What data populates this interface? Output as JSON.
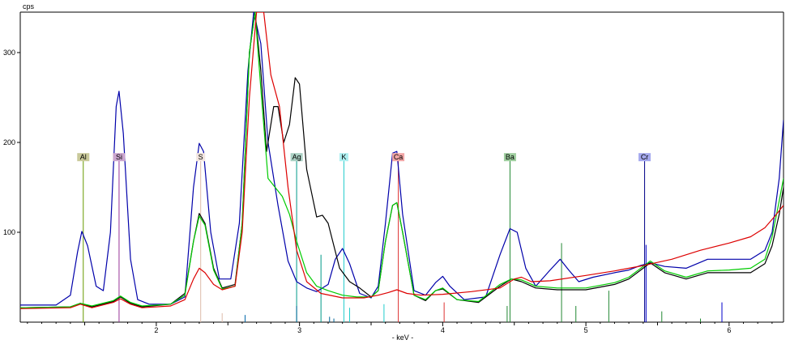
{
  "chart_data": {
    "type": "line",
    "ylabel": "cps",
    "xlabel": "- keV -",
    "xlim": [
      1.05,
      6.38
    ],
    "ylim": [
      0,
      345
    ],
    "x_ticks": [
      2,
      3,
      4,
      5,
      6
    ],
    "y_ticks": [
      100,
      200,
      300
    ],
    "x_tick_labels": [
      "2",
      "3",
      "4",
      "5",
      "6"
    ],
    "y_tick_labels": [
      "100",
      "200",
      "300"
    ],
    "series": [
      {
        "color": "#0000aa",
        "points": [
          [
            1.05,
            19
          ],
          [
            1.3,
            19
          ],
          [
            1.4,
            30
          ],
          [
            1.45,
            78
          ],
          [
            1.48,
            101
          ],
          [
            1.52,
            85
          ],
          [
            1.58,
            40
          ],
          [
            1.63,
            35
          ],
          [
            1.68,
            100
          ],
          [
            1.72,
            240
          ],
          [
            1.74,
            257
          ],
          [
            1.77,
            210
          ],
          [
            1.82,
            70
          ],
          [
            1.87,
            25
          ],
          [
            1.95,
            20
          ],
          [
            2.1,
            20
          ],
          [
            2.2,
            28
          ],
          [
            2.26,
            150
          ],
          [
            2.3,
            199
          ],
          [
            2.33,
            190
          ],
          [
            2.38,
            100
          ],
          [
            2.44,
            48
          ],
          [
            2.52,
            48
          ],
          [
            2.58,
            110
          ],
          [
            2.64,
            280
          ],
          [
            2.68,
            345
          ],
          [
            2.73,
            310
          ],
          [
            2.78,
            200
          ],
          [
            2.85,
            130
          ],
          [
            2.92,
            68
          ],
          [
            2.98,
            45
          ],
          [
            3.05,
            38
          ],
          [
            3.12,
            34
          ],
          [
            3.2,
            42
          ],
          [
            3.25,
            70
          ],
          [
            3.3,
            82
          ],
          [
            3.35,
            65
          ],
          [
            3.42,
            32
          ],
          [
            3.5,
            27
          ],
          [
            3.55,
            40
          ],
          [
            3.6,
            110
          ],
          [
            3.65,
            188
          ],
          [
            3.68,
            190
          ],
          [
            3.72,
            120
          ],
          [
            3.8,
            35
          ],
          [
            3.88,
            30
          ],
          [
            3.95,
            44
          ],
          [
            4.0,
            51
          ],
          [
            4.05,
            40
          ],
          [
            4.15,
            25
          ],
          [
            4.3,
            28
          ],
          [
            4.4,
            75
          ],
          [
            4.47,
            104
          ],
          [
            4.52,
            100
          ],
          [
            4.58,
            60
          ],
          [
            4.65,
            40
          ],
          [
            4.75,
            58
          ],
          [
            4.82,
            70
          ],
          [
            4.88,
            58
          ],
          [
            4.95,
            45
          ],
          [
            5.05,
            50
          ],
          [
            5.2,
            55
          ],
          [
            5.3,
            58
          ],
          [
            5.38,
            63
          ],
          [
            5.45,
            66
          ],
          [
            5.55,
            62
          ],
          [
            5.7,
            60
          ],
          [
            5.85,
            70
          ],
          [
            6.0,
            70
          ],
          [
            6.15,
            70
          ],
          [
            6.25,
            80
          ],
          [
            6.3,
            100
          ],
          [
            6.35,
            160
          ],
          [
            6.38,
            225
          ]
        ]
      },
      {
        "color": "#000000",
        "points": [
          [
            1.05,
            16
          ],
          [
            1.4,
            17
          ],
          [
            1.47,
            21
          ],
          [
            1.55,
            17
          ],
          [
            1.7,
            23
          ],
          [
            1.75,
            28
          ],
          [
            1.82,
            21
          ],
          [
            1.9,
            17
          ],
          [
            2.1,
            20
          ],
          [
            2.2,
            32
          ],
          [
            2.26,
            90
          ],
          [
            2.3,
            121
          ],
          [
            2.34,
            110
          ],
          [
            2.4,
            60
          ],
          [
            2.46,
            38
          ],
          [
            2.55,
            42
          ],
          [
            2.6,
            110
          ],
          [
            2.65,
            300
          ],
          [
            2.69,
            345
          ],
          [
            2.73,
            280
          ],
          [
            2.77,
            190
          ],
          [
            2.82,
            240
          ],
          [
            2.85,
            240
          ],
          [
            2.89,
            200
          ],
          [
            2.93,
            220
          ],
          [
            2.97,
            272
          ],
          [
            3.0,
            265
          ],
          [
            3.05,
            170
          ],
          [
            3.12,
            117
          ],
          [
            3.16,
            119
          ],
          [
            3.2,
            110
          ],
          [
            3.28,
            60
          ],
          [
            3.35,
            45
          ],
          [
            3.42,
            38
          ],
          [
            3.5,
            28
          ],
          [
            3.55,
            35
          ],
          [
            3.6,
            90
          ],
          [
            3.65,
            130
          ],
          [
            3.68,
            133
          ],
          [
            3.72,
            100
          ],
          [
            3.8,
            30
          ],
          [
            3.88,
            24
          ],
          [
            3.95,
            35
          ],
          [
            4.0,
            37
          ],
          [
            4.1,
            25
          ],
          [
            4.25,
            22
          ],
          [
            4.4,
            40
          ],
          [
            4.48,
            48
          ],
          [
            4.55,
            45
          ],
          [
            4.65,
            38
          ],
          [
            4.8,
            36
          ],
          [
            5.0,
            36
          ],
          [
            5.2,
            42
          ],
          [
            5.3,
            48
          ],
          [
            5.4,
            60
          ],
          [
            5.45,
            66
          ],
          [
            5.55,
            55
          ],
          [
            5.7,
            48
          ],
          [
            5.85,
            55
          ],
          [
            6.0,
            55
          ],
          [
            6.15,
            55
          ],
          [
            6.25,
            65
          ],
          [
            6.3,
            85
          ],
          [
            6.35,
            120
          ],
          [
            6.38,
            150
          ]
        ]
      },
      {
        "color": "#00cc00",
        "points": [
          [
            1.05,
            16
          ],
          [
            1.4,
            17
          ],
          [
            1.47,
            21
          ],
          [
            1.55,
            18
          ],
          [
            1.7,
            24
          ],
          [
            1.75,
            29
          ],
          [
            1.82,
            22
          ],
          [
            1.9,
            18
          ],
          [
            2.1,
            20
          ],
          [
            2.2,
            30
          ],
          [
            2.26,
            90
          ],
          [
            2.3,
            118
          ],
          [
            2.34,
            108
          ],
          [
            2.4,
            58
          ],
          [
            2.46,
            37
          ],
          [
            2.55,
            40
          ],
          [
            2.6,
            110
          ],
          [
            2.65,
            300
          ],
          [
            2.69,
            345
          ],
          [
            2.73,
            260
          ],
          [
            2.78,
            160
          ],
          [
            2.83,
            150
          ],
          [
            2.88,
            140
          ],
          [
            2.93,
            120
          ],
          [
            2.98,
            90
          ],
          [
            3.05,
            55
          ],
          [
            3.12,
            40
          ],
          [
            3.2,
            35
          ],
          [
            3.3,
            30
          ],
          [
            3.4,
            28
          ],
          [
            3.5,
            28
          ],
          [
            3.55,
            35
          ],
          [
            3.6,
            90
          ],
          [
            3.65,
            130
          ],
          [
            3.68,
            133
          ],
          [
            3.72,
            100
          ],
          [
            3.8,
            30
          ],
          [
            3.88,
            25
          ],
          [
            3.95,
            35
          ],
          [
            4.0,
            38
          ],
          [
            4.1,
            25
          ],
          [
            4.25,
            23
          ],
          [
            4.4,
            42
          ],
          [
            4.48,
            48
          ],
          [
            4.55,
            47
          ],
          [
            4.65,
            40
          ],
          [
            4.8,
            38
          ],
          [
            5.0,
            38
          ],
          [
            5.2,
            44
          ],
          [
            5.3,
            50
          ],
          [
            5.4,
            62
          ],
          [
            5.45,
            68
          ],
          [
            5.55,
            57
          ],
          [
            5.7,
            50
          ],
          [
            5.85,
            57
          ],
          [
            6.0,
            58
          ],
          [
            6.15,
            60
          ],
          [
            6.25,
            70
          ],
          [
            6.3,
            95
          ],
          [
            6.35,
            135
          ],
          [
            6.38,
            160
          ]
        ]
      },
      {
        "color": "#dd0000",
        "points": [
          [
            1.05,
            15
          ],
          [
            1.4,
            16
          ],
          [
            1.47,
            20
          ],
          [
            1.55,
            16
          ],
          [
            1.7,
            22
          ],
          [
            1.75,
            26
          ],
          [
            1.82,
            20
          ],
          [
            1.9,
            16
          ],
          [
            2.1,
            18
          ],
          [
            2.2,
            25
          ],
          [
            2.26,
            48
          ],
          [
            2.3,
            60
          ],
          [
            2.34,
            55
          ],
          [
            2.4,
            42
          ],
          [
            2.46,
            36
          ],
          [
            2.55,
            40
          ],
          [
            2.6,
            100
          ],
          [
            2.65,
            250
          ],
          [
            2.7,
            345
          ],
          [
            2.75,
            345
          ],
          [
            2.8,
            275
          ],
          [
            2.86,
            240
          ],
          [
            2.92,
            150
          ],
          [
            2.98,
            80
          ],
          [
            3.05,
            45
          ],
          [
            3.15,
            32
          ],
          [
            3.3,
            27
          ],
          [
            3.45,
            27
          ],
          [
            3.55,
            30
          ],
          [
            3.62,
            33
          ],
          [
            3.68,
            36
          ],
          [
            3.75,
            32
          ],
          [
            3.85,
            30
          ],
          [
            4.0,
            31
          ],
          [
            4.2,
            34
          ],
          [
            4.4,
            38
          ],
          [
            4.5,
            48
          ],
          [
            4.55,
            50
          ],
          [
            4.62,
            45
          ],
          [
            4.75,
            46
          ],
          [
            5.0,
            52
          ],
          [
            5.2,
            57
          ],
          [
            5.4,
            63
          ],
          [
            5.6,
            70
          ],
          [
            5.8,
            80
          ],
          [
            6.0,
            88
          ],
          [
            6.15,
            95
          ],
          [
            6.25,
            105
          ],
          [
            6.32,
            118
          ],
          [
            6.38,
            130
          ]
        ]
      }
    ],
    "element_markers": [
      {
        "label": "Al",
        "x": 1.49,
        "color": "#669900",
        "label_bg": "#c9c99a"
      },
      {
        "label": "Si",
        "x": 1.74,
        "color": "#993399",
        "label_bg": "#cba6cf"
      },
      {
        "label": "S",
        "x": 2.31,
        "color": "#ddbbaa",
        "label_bg": "#f2e5df"
      },
      {
        "label": "Ag",
        "x": 2.98,
        "color": "#009988",
        "label_bg": "#a9cfc2"
      },
      {
        "label": "K",
        "x": 3.31,
        "color": "#22cccc",
        "label_bg": "#aeeff0"
      },
      {
        "label": "Ca",
        "x": 3.69,
        "color": "#dd3333",
        "label_bg": "#f1a6a6"
      },
      {
        "label": "Ba",
        "x": 4.47,
        "color": "#228833",
        "label_bg": "#9fce9f"
      },
      {
        "label": "Cr",
        "x": 5.41,
        "color": "#000088",
        "label_bg": "#a5a9ee"
      }
    ],
    "marker_label_y": 180,
    "spectral_lines": [
      {
        "x": 1.49,
        "y": 180,
        "color": "#669900"
      },
      {
        "x": 1.74,
        "y": 180,
        "color": "#993399"
      },
      {
        "x": 2.31,
        "y": 180,
        "color": "#ddbbaa"
      },
      {
        "x": 2.46,
        "y": 10,
        "color": "#ddbbaa"
      },
      {
        "x": 2.62,
        "y": 8,
        "color": "#0066aa"
      },
      {
        "x": 2.98,
        "y": 180,
        "color": "#009988"
      },
      {
        "x": 2.98,
        "y": 18,
        "color": "#006699"
      },
      {
        "x": 3.15,
        "y": 75,
        "color": "#009988"
      },
      {
        "x": 3.21,
        "y": 6,
        "color": "#006699"
      },
      {
        "x": 3.24,
        "y": 4,
        "color": "#006699"
      },
      {
        "x": 3.31,
        "y": 180,
        "color": "#22cccc"
      },
      {
        "x": 3.35,
        "y": 16,
        "color": "#22cccc"
      },
      {
        "x": 3.59,
        "y": 20,
        "color": "#22cccc"
      },
      {
        "x": 3.69,
        "y": 180,
        "color": "#dd3333"
      },
      {
        "x": 4.01,
        "y": 22,
        "color": "#dd3333"
      },
      {
        "x": 4.47,
        "y": 180,
        "color": "#228833"
      },
      {
        "x": 4.45,
        "y": 18,
        "color": "#228833"
      },
      {
        "x": 4.83,
        "y": 88,
        "color": "#228833"
      },
      {
        "x": 4.93,
        "y": 18,
        "color": "#228833"
      },
      {
        "x": 5.16,
        "y": 35,
        "color": "#228833"
      },
      {
        "x": 5.41,
        "y": 180,
        "color": "#000088"
      },
      {
        "x": 5.42,
        "y": 86,
        "color": "#0000cc"
      },
      {
        "x": 5.53,
        "y": 12,
        "color": "#228833"
      },
      {
        "x": 5.95,
        "y": 22,
        "color": "#0000cc"
      },
      {
        "x": 5.8,
        "y": 4,
        "color": "#228833"
      }
    ]
  }
}
